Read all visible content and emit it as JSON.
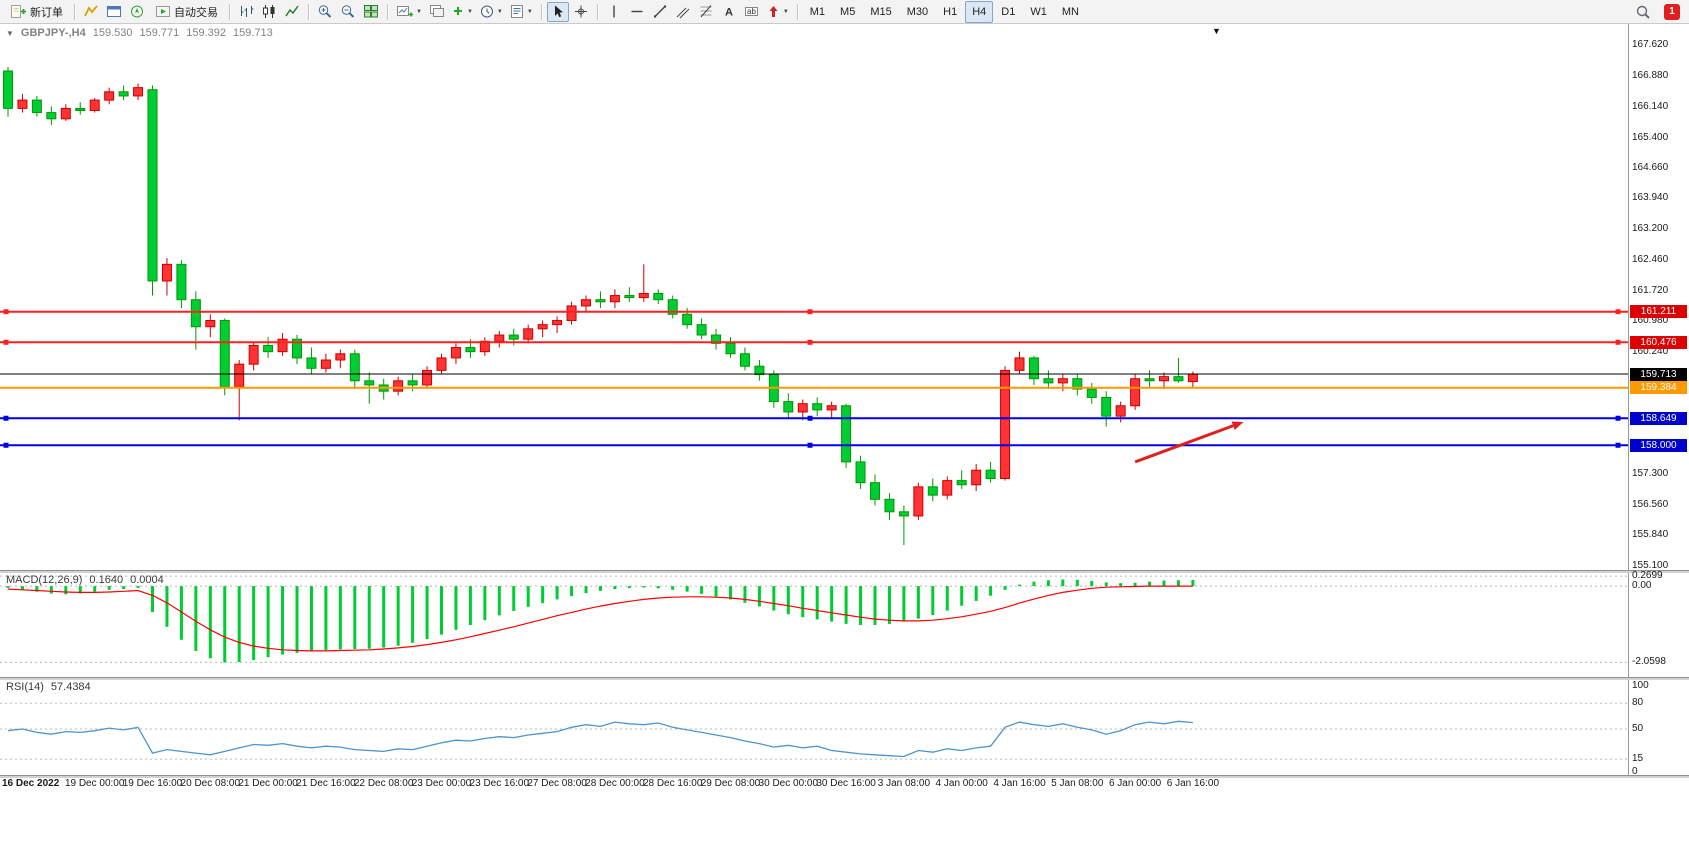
{
  "app": {
    "notification_count": "1"
  },
  "toolbar": {
    "new_order_label": "新订单",
    "auto_trading_label": "自动交易",
    "timeframes": [
      {
        "label": "M1",
        "active": false
      },
      {
        "label": "M5",
        "active": false
      },
      {
        "label": "M15",
        "active": false
      },
      {
        "label": "M30",
        "active": false
      },
      {
        "label": "H1",
        "active": false
      },
      {
        "label": "H4",
        "active": true
      },
      {
        "label": "D1",
        "active": false
      },
      {
        "label": "W1",
        "active": false
      },
      {
        "label": "MN",
        "active": false
      }
    ],
    "icon_names": [
      "new-order",
      "market-watch",
      "data-window",
      "navigator",
      "auto-trading",
      "bar-chart",
      "candlestick-chart",
      "line-chart",
      "zoom-in",
      "zoom-out",
      "tile-windows",
      "new-chart",
      "chart-profiles",
      "indicators-add",
      "periods",
      "templates",
      "cursor",
      "crosshair",
      "vertical-line",
      "horizontal-line",
      "trendline",
      "equidistant-channel",
      "fibonacci",
      "text",
      "text-label",
      "arrows",
      "search",
      "notification"
    ]
  },
  "chart": {
    "symbol": "GBPJPY-,H4",
    "open": "159.530",
    "high": "159.771",
    "low": "159.392",
    "close": "159.713",
    "up_color": "#FF3333",
    "up_border": "#CC0000",
    "down_color": "#00CC33",
    "down_border": "#009900",
    "price_axis": [
      {
        "label": "167.620",
        "value": 167.62
      },
      {
        "label": "166.880",
        "value": 166.88
      },
      {
        "label": "166.140",
        "value": 166.14
      },
      {
        "label": "165.400",
        "value": 165.4
      },
      {
        "label": "164.660",
        "value": 164.66
      },
      {
        "label": "163.940",
        "value": 163.94
      },
      {
        "label": "163.200",
        "value": 163.2
      },
      {
        "label": "162.460",
        "value": 162.46
      },
      {
        "label": "161.720",
        "value": 161.72
      },
      {
        "label": "160.980",
        "value": 160.98
      },
      {
        "label": "160.240",
        "value": 160.24
      },
      {
        "label": "157.300",
        "value": 157.3
      },
      {
        "label": "156.560",
        "value": 156.56
      },
      {
        "label": "155.840",
        "value": 155.84
      },
      {
        "label": "155.100",
        "value": 155.1
      }
    ],
    "hlines": [
      {
        "value": 161.211,
        "label": "161.211",
        "color": "#FF2020",
        "badge_bg": "#DE0000",
        "width": 2,
        "handles": true
      },
      {
        "value": 160.476,
        "label": "160.476",
        "color": "#FF2020",
        "badge_bg": "#DE0000",
        "width": 2,
        "handles": true
      },
      {
        "value": 159.713,
        "label": "159.713",
        "color": "#000000",
        "badge_bg": "#000000",
        "width": 1,
        "handles": false
      },
      {
        "value": 159.384,
        "label": "159.384",
        "color": "#FF9900",
        "badge_bg": "#FF9900",
        "width": 2,
        "handles": false
      },
      {
        "value": 158.649,
        "label": "158.649",
        "color": "#0000E6",
        "badge_bg": "#0000CC",
        "width": 2,
        "handles": true
      },
      {
        "value": 158.0,
        "label": "158.000",
        "color": "#0000E6",
        "badge_bg": "#0000CC",
        "width": 2,
        "handles": true
      }
    ],
    "arrow": {
      "i1": 78,
      "p1": 157.6,
      "i2": 85.5,
      "p2": 158.56,
      "color": "#E02020"
    }
  },
  "chart_data": [
    {
      "type": "candlestick",
      "symbol": "GBPJPY-",
      "timeframe": "H4",
      "ylim": [
        155.0,
        168.13
      ],
      "x_labels": [
        {
          "i": 0,
          "label": "16 Dec 2022",
          "bold": true
        },
        {
          "i": 6,
          "label": "19 Dec 00:00"
        },
        {
          "i": 10,
          "label": "19 Dec 16:00"
        },
        {
          "i": 14,
          "label": "20 Dec 08:00"
        },
        {
          "i": 18,
          "label": "21 Dec 00:00"
        },
        {
          "i": 22,
          "label": "21 Dec 16:00"
        },
        {
          "i": 26,
          "label": "22 Dec 08:00"
        },
        {
          "i": 30,
          "label": "23 Dec 00:00"
        },
        {
          "i": 34,
          "label": "23 Dec 16:00"
        },
        {
          "i": 38,
          "label": "27 Dec 08:00"
        },
        {
          "i": 42,
          "label": "28 Dec 00:00"
        },
        {
          "i": 46,
          "label": "28 Dec 16:00"
        },
        {
          "i": 50,
          "label": "29 Dec 08:00"
        },
        {
          "i": 54,
          "label": "30 Dec 00:00"
        },
        {
          "i": 58,
          "label": "30 Dec 16:00"
        },
        {
          "i": 62,
          "label": "3 Jan 08:00"
        },
        {
          "i": 66,
          "label": "4 Jan 00:00"
        },
        {
          "i": 70,
          "label": "4 Jan 16:00"
        },
        {
          "i": 74,
          "label": "5 Jan 08:00"
        },
        {
          "i": 78,
          "label": "6 Jan 00:00"
        },
        {
          "i": 82,
          "label": "6 Jan 16:00"
        }
      ],
      "candles": [
        [
          167.0,
          167.1,
          165.9,
          166.1
        ],
        [
          166.1,
          166.45,
          166.0,
          166.3
        ],
        [
          166.3,
          166.4,
          165.9,
          166.0
        ],
        [
          166.0,
          166.15,
          165.7,
          165.85
        ],
        [
          165.85,
          166.2,
          165.8,
          166.1
        ],
        [
          166.1,
          166.25,
          165.95,
          166.05
        ],
        [
          166.05,
          166.35,
          166.0,
          166.3
        ],
        [
          166.3,
          166.6,
          166.2,
          166.5
        ],
        [
          166.5,
          166.65,
          166.3,
          166.4
        ],
        [
          166.4,
          166.7,
          166.3,
          166.6
        ],
        [
          166.55,
          166.65,
          161.6,
          161.95
        ],
        [
          161.95,
          162.5,
          161.6,
          162.35
        ],
        [
          162.35,
          162.45,
          161.3,
          161.5
        ],
        [
          161.5,
          161.7,
          160.3,
          160.85
        ],
        [
          160.85,
          161.15,
          160.6,
          161.0
        ],
        [
          161.0,
          161.05,
          159.2,
          159.4
        ],
        [
          159.4,
          160.05,
          158.6,
          159.95
        ],
        [
          159.95,
          160.5,
          159.8,
          160.4
        ],
        [
          160.4,
          160.6,
          160.1,
          160.25
        ],
        [
          160.25,
          160.7,
          160.15,
          160.55
        ],
        [
          160.55,
          160.65,
          159.95,
          160.1
        ],
        [
          160.1,
          160.35,
          159.7,
          159.85
        ],
        [
          159.85,
          160.2,
          159.75,
          160.05
        ],
        [
          160.05,
          160.3,
          159.85,
          160.2
        ],
        [
          160.2,
          160.3,
          159.35,
          159.55
        ],
        [
          159.55,
          159.75,
          159.0,
          159.45
        ],
        [
          159.45,
          159.6,
          159.1,
          159.3
        ],
        [
          159.3,
          159.65,
          159.2,
          159.55
        ],
        [
          159.55,
          159.7,
          159.3,
          159.45
        ],
        [
          159.45,
          159.9,
          159.35,
          159.8
        ],
        [
          159.8,
          160.2,
          159.7,
          160.1
        ],
        [
          160.1,
          160.45,
          159.95,
          160.35
        ],
        [
          160.35,
          160.55,
          160.1,
          160.25
        ],
        [
          160.25,
          160.6,
          160.15,
          160.5
        ],
        [
          160.5,
          160.75,
          160.35,
          160.65
        ],
        [
          160.65,
          160.8,
          160.4,
          160.55
        ],
        [
          160.55,
          160.9,
          160.45,
          160.8
        ],
        [
          160.8,
          161.0,
          160.6,
          160.9
        ],
        [
          160.9,
          161.1,
          160.7,
          161.0
        ],
        [
          161.0,
          161.45,
          160.9,
          161.35
        ],
        [
          161.35,
          161.6,
          161.2,
          161.5
        ],
        [
          161.5,
          161.7,
          161.3,
          161.45
        ],
        [
          161.45,
          161.75,
          161.3,
          161.6
        ],
        [
          161.6,
          161.8,
          161.45,
          161.55
        ],
        [
          161.55,
          162.35,
          161.45,
          161.65
        ],
        [
          161.65,
          161.75,
          161.4,
          161.5
        ],
        [
          161.5,
          161.6,
          161.05,
          161.15
        ],
        [
          161.15,
          161.3,
          160.8,
          160.9
        ],
        [
          160.9,
          161.05,
          160.55,
          160.65
        ],
        [
          160.65,
          160.8,
          160.3,
          160.45
        ],
        [
          160.45,
          160.6,
          160.1,
          160.2
        ],
        [
          160.2,
          160.35,
          159.8,
          159.9
        ],
        [
          159.9,
          160.05,
          159.55,
          159.7
        ],
        [
          159.7,
          159.8,
          158.9,
          159.05
        ],
        [
          159.05,
          159.25,
          158.65,
          158.8
        ],
        [
          158.8,
          159.1,
          158.6,
          159.0
        ],
        [
          159.0,
          159.15,
          158.7,
          158.85
        ],
        [
          158.85,
          159.05,
          158.65,
          158.95
        ],
        [
          158.95,
          159.0,
          157.45,
          157.6
        ],
        [
          157.6,
          157.75,
          156.95,
          157.1
        ],
        [
          157.1,
          157.3,
          156.55,
          156.7
        ],
        [
          156.7,
          156.85,
          156.2,
          156.4
        ],
        [
          156.4,
          156.55,
          155.6,
          156.3
        ],
        [
          156.3,
          157.1,
          156.2,
          157.0
        ],
        [
          157.0,
          157.2,
          156.65,
          156.8
        ],
        [
          156.8,
          157.25,
          156.7,
          157.15
        ],
        [
          157.15,
          157.4,
          156.95,
          157.05
        ],
        [
          157.05,
          157.55,
          156.9,
          157.4
        ],
        [
          157.4,
          157.6,
          157.1,
          157.2
        ],
        [
          157.2,
          159.9,
          157.15,
          159.8
        ],
        [
          159.8,
          160.25,
          159.7,
          160.1
        ],
        [
          160.1,
          160.15,
          159.45,
          159.6
        ],
        [
          159.6,
          159.8,
          159.35,
          159.5
        ],
        [
          159.5,
          159.7,
          159.3,
          159.6
        ],
        [
          159.6,
          159.7,
          159.2,
          159.35
        ],
        [
          159.35,
          159.5,
          159.0,
          159.15
        ],
        [
          159.15,
          159.3,
          158.45,
          158.7
        ],
        [
          158.7,
          159.05,
          158.55,
          158.95
        ],
        [
          158.95,
          159.7,
          158.85,
          159.6
        ],
        [
          159.6,
          159.8,
          159.4,
          159.55
        ],
        [
          159.55,
          159.75,
          159.35,
          159.65
        ],
        [
          159.65,
          160.1,
          159.5,
          159.55
        ],
        [
          159.53,
          159.771,
          159.392,
          159.713
        ]
      ]
    },
    {
      "type": "macd",
      "name": "MACD(12,26,9)",
      "value_main": "0.1640",
      "value_signal": "0.0004",
      "ylim": [
        -2.32,
        0.3
      ],
      "hist_color": "#00CC33",
      "signal_color": "#FF0000",
      "levels": [
        {
          "value": 0.2699,
          "label": "0.2699"
        },
        {
          "value": 0,
          "label": "0.00"
        },
        {
          "value": -2.0598,
          "label": "-2.0598"
        }
      ],
      "main": [
        -0.05,
        -0.1,
        -0.15,
        -0.2,
        -0.22,
        -0.2,
        -0.15,
        -0.1,
        -0.08,
        -0.05,
        -0.7,
        -1.1,
        -1.45,
        -1.75,
        -1.95,
        -2.06,
        -2.05,
        -2.0,
        -1.92,
        -1.85,
        -1.8,
        -1.76,
        -1.73,
        -1.71,
        -1.7,
        -1.69,
        -1.66,
        -1.61,
        -1.53,
        -1.43,
        -1.31,
        -1.18,
        -1.05,
        -0.92,
        -0.79,
        -0.67,
        -0.56,
        -0.46,
        -0.36,
        -0.27,
        -0.19,
        -0.13,
        -0.08,
        -0.05,
        -0.04,
        -0.06,
        -0.1,
        -0.15,
        -0.21,
        -0.28,
        -0.36,
        -0.45,
        -0.55,
        -0.66,
        -0.76,
        -0.84,
        -0.9,
        -0.96,
        -1.02,
        -1.05,
        -1.05,
        -1.02,
        -0.96,
        -0.88,
        -0.78,
        -0.66,
        -0.53,
        -0.4,
        -0.26,
        -0.1,
        0.04,
        0.12,
        0.16,
        0.18,
        0.17,
        0.14,
        0.1,
        0.08,
        0.09,
        0.12,
        0.15,
        0.16,
        0.164
      ],
      "signal": [
        -0.08,
        -0.1,
        -0.12,
        -0.14,
        -0.16,
        -0.17,
        -0.17,
        -0.16,
        -0.14,
        -0.12,
        -0.25,
        -0.45,
        -0.7,
        -0.95,
        -1.18,
        -1.38,
        -1.52,
        -1.62,
        -1.68,
        -1.72,
        -1.74,
        -1.75,
        -1.75,
        -1.74,
        -1.73,
        -1.72,
        -1.7,
        -1.67,
        -1.63,
        -1.58,
        -1.52,
        -1.45,
        -1.37,
        -1.28,
        -1.19,
        -1.1,
        -1.0,
        -0.9,
        -0.8,
        -0.71,
        -0.62,
        -0.54,
        -0.47,
        -0.41,
        -0.36,
        -0.32,
        -0.3,
        -0.29,
        -0.29,
        -0.3,
        -0.32,
        -0.36,
        -0.41,
        -0.47,
        -0.53,
        -0.6,
        -0.66,
        -0.72,
        -0.78,
        -0.84,
        -0.89,
        -0.92,
        -0.94,
        -0.94,
        -0.92,
        -0.88,
        -0.83,
        -0.76,
        -0.68,
        -0.58,
        -0.46,
        -0.35,
        -0.25,
        -0.17,
        -0.11,
        -0.06,
        -0.03,
        -0.02,
        -0.01,
        0.0,
        0.0,
        0.0,
        0.0004
      ]
    },
    {
      "type": "rsi",
      "name": "RSI(14)",
      "value": "57.4384",
      "ylim": [
        0,
        100
      ],
      "line_color": "#4f94cd",
      "levels": [
        {
          "value": 100,
          "label": "100",
          "line": false
        },
        {
          "value": 80,
          "label": "80",
          "line": true
        },
        {
          "value": 50,
          "label": "50",
          "line": true
        },
        {
          "value": 15,
          "label": "15",
          "line": true
        },
        {
          "value": 0,
          "label": "0",
          "line": false
        }
      ],
      "values": [
        48,
        50,
        46,
        44,
        47,
        46,
        48,
        51,
        49,
        52,
        22,
        26,
        24,
        22,
        20,
        24,
        28,
        32,
        31,
        33,
        30,
        28,
        30,
        29,
        26,
        25,
        24,
        27,
        26,
        30,
        34,
        37,
        36,
        39,
        41,
        40,
        43,
        45,
        47,
        52,
        55,
        53,
        58,
        56,
        55,
        57,
        52,
        49,
        46,
        43,
        40,
        36,
        33,
        29,
        31,
        28,
        30,
        25,
        23,
        21,
        20,
        19,
        18,
        25,
        23,
        27,
        25,
        28,
        30,
        52,
        58,
        55,
        53,
        56,
        52,
        49,
        44,
        48,
        55,
        58,
        56,
        59,
        57.4384
      ]
    }
  ]
}
